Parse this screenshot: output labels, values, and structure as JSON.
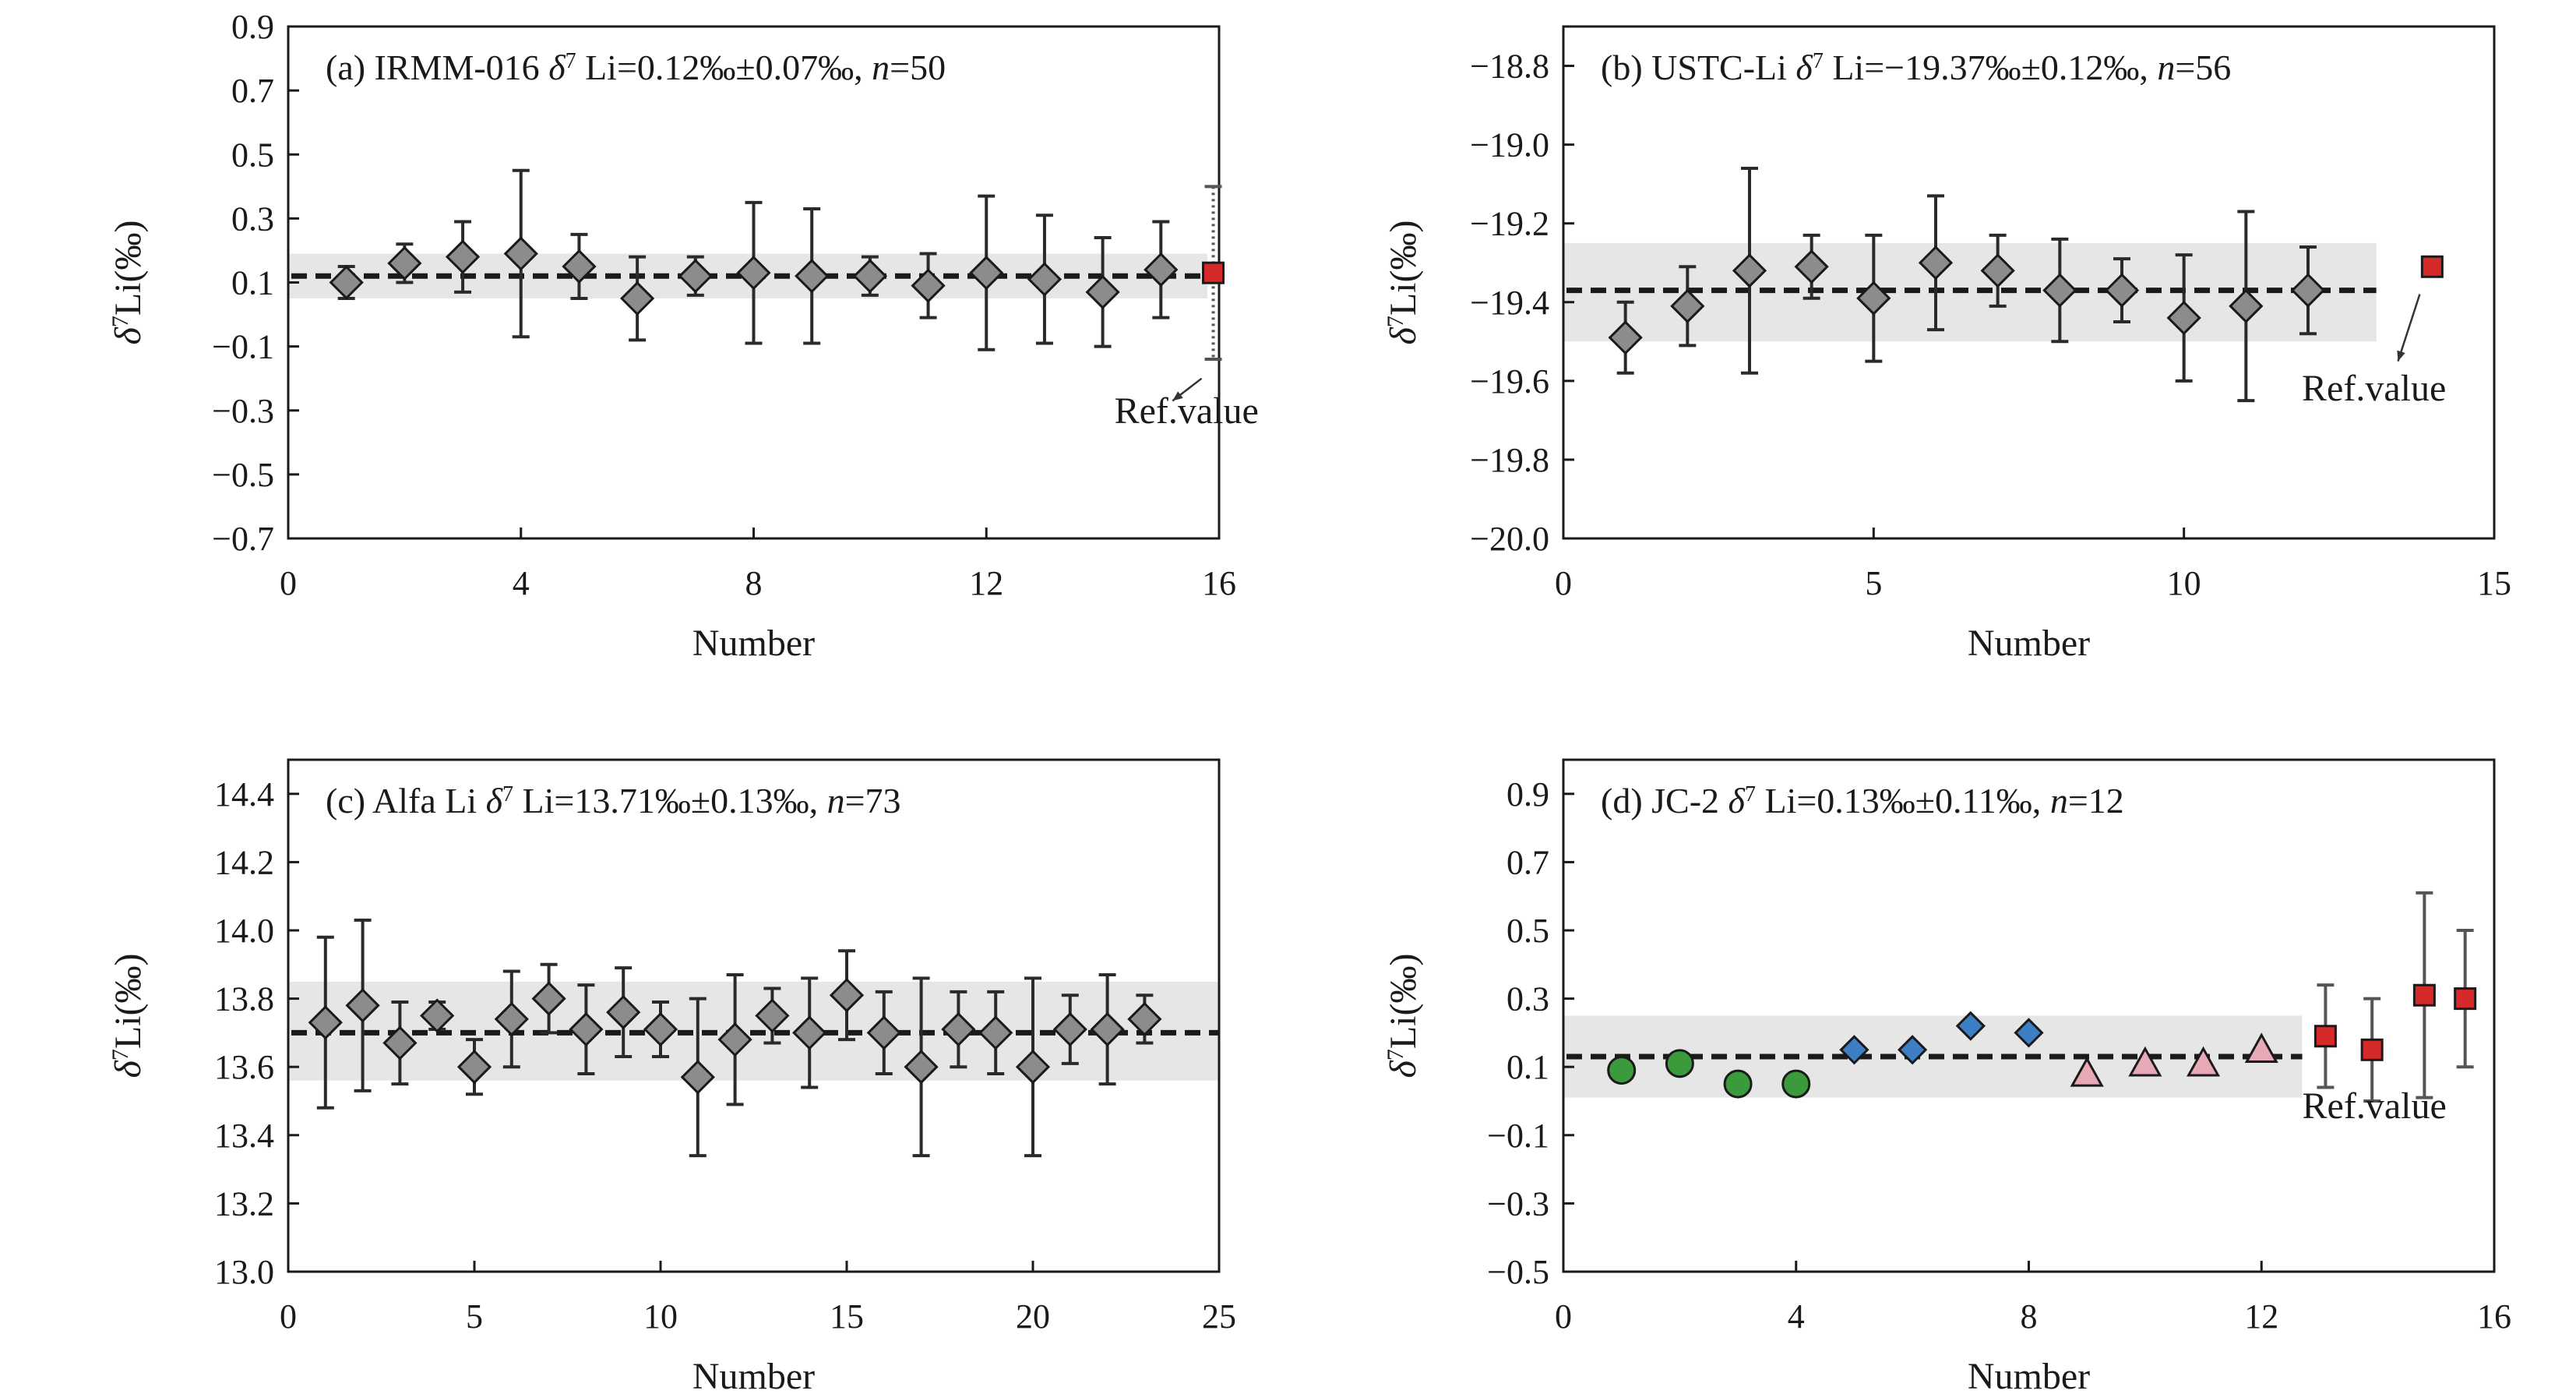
{
  "figure": {
    "ref_label": "Ref.value",
    "colors": {
      "band": "#e6e6e6",
      "gray_marker": "#8c8c8c",
      "ref_marker": "#d62a2a",
      "green": "#3a9a3c",
      "blue": "#3d7fc4",
      "pink": "#e8a9b6",
      "line": "#1a1a1a"
    }
  },
  "chart_data": [
    {
      "id": "a",
      "type": "scatter",
      "title_parts": [
        "(a) IRMM-016 ",
        "δ",
        "7",
        " Li=0.12‰±0.07‰, ",
        "n",
        "=50"
      ],
      "xlabel": "Number",
      "ylabel_parts": [
        "δ",
        "7",
        "Li(‰)"
      ],
      "xlim": [
        0,
        16
      ],
      "ylim": [
        -0.7,
        0.9
      ],
      "xticks": [
        0,
        4,
        8,
        12,
        16
      ],
      "yticks": [
        -0.7,
        -0.5,
        -0.3,
        -0.1,
        0.1,
        0.3,
        0.5,
        0.7,
        0.9
      ],
      "ytick_labels": [
        "−0.7",
        "−0.5",
        "−0.3",
        "−0.1",
        "0.1",
        "0.3",
        "0.5",
        "0.7",
        "0.9"
      ],
      "mean": 0.12,
      "band": [
        0.05,
        0.19
      ],
      "band_xmax": 15.8,
      "series": [
        {
          "marker": "diamond",
          "color": "gray",
          "points": [
            {
              "x": 1,
              "y": 0.1,
              "err": 0.05
            },
            {
              "x": 2,
              "y": 0.16,
              "err": 0.06
            },
            {
              "x": 3,
              "y": 0.18,
              "err": 0.11
            },
            {
              "x": 4,
              "y": 0.19,
              "err": 0.26
            },
            {
              "x": 5,
              "y": 0.15,
              "err": 0.1
            },
            {
              "x": 6,
              "y": 0.05,
              "err": 0.13
            },
            {
              "x": 7,
              "y": 0.12,
              "err": 0.06
            },
            {
              "x": 8,
              "y": 0.13,
              "err": 0.22
            },
            {
              "x": 9,
              "y": 0.12,
              "err": 0.21
            },
            {
              "x": 10,
              "y": 0.12,
              "err": 0.06
            },
            {
              "x": 11,
              "y": 0.09,
              "err": 0.1
            },
            {
              "x": 12,
              "y": 0.13,
              "err": 0.24
            },
            {
              "x": 13,
              "y": 0.11,
              "err": 0.2
            },
            {
              "x": 14,
              "y": 0.07,
              "err": 0.17
            },
            {
              "x": 15,
              "y": 0.14,
              "err": 0.15
            }
          ]
        },
        {
          "marker": "square",
          "color": "ref",
          "dotted": true,
          "points": [
            {
              "x": 15.9,
              "y": 0.13,
              "err": 0.27
            }
          ]
        }
      ],
      "ref_annotation": {
        "label_x": 14.2,
        "label_y": -0.34,
        "arrow_from": [
          15.7,
          -0.2
        ],
        "arrow_to": [
          15.2,
          -0.27
        ]
      }
    },
    {
      "id": "b",
      "type": "scatter",
      "title_parts": [
        "(b) USTC-Li ",
        "δ",
        "7",
        " Li=−19.37‰±0.12‰, ",
        "n",
        "=56"
      ],
      "xlabel": "Number",
      "ylabel_parts": [
        "δ",
        "7",
        "Li(‰)"
      ],
      "xlim": [
        0,
        15
      ],
      "ylim": [
        -20.0,
        -18.7
      ],
      "xticks": [
        0,
        5,
        10,
        15
      ],
      "yticks": [
        -20.0,
        -19.8,
        -19.6,
        -19.4,
        -19.2,
        -19.0,
        -18.8
      ],
      "ytick_labels": [
        "−20.0",
        "−19.8",
        "−19.6",
        "−19.4",
        "−19.2",
        "−19.0",
        "−18.8"
      ],
      "mean": -19.37,
      "band": [
        -19.5,
        -19.25
      ],
      "band_xmax": 13.1,
      "series": [
        {
          "marker": "diamond",
          "color": "gray",
          "points": [
            {
              "x": 1,
              "y": -19.49,
              "err": 0.09
            },
            {
              "x": 2,
              "y": -19.41,
              "err": 0.1
            },
            {
              "x": 3,
              "y": -19.32,
              "err": 0.26
            },
            {
              "x": 4,
              "y": -19.31,
              "err": 0.08
            },
            {
              "x": 5,
              "y": -19.39,
              "err": 0.16
            },
            {
              "x": 6,
              "y": -19.3,
              "err": 0.17
            },
            {
              "x": 7,
              "y": -19.32,
              "err": 0.09
            },
            {
              "x": 8,
              "y": -19.37,
              "err": 0.13
            },
            {
              "x": 9,
              "y": -19.37,
              "err": 0.08
            },
            {
              "x": 10,
              "y": -19.44,
              "err": 0.16
            },
            {
              "x": 11,
              "y": -19.41,
              "err": 0.24
            },
            {
              "x": 12,
              "y": -19.37,
              "err": 0.11
            }
          ]
        },
        {
          "marker": "square",
          "color": "ref",
          "points": [
            {
              "x": 14.0,
              "y": -19.31,
              "err": 0
            }
          ]
        }
      ],
      "ref_annotation": {
        "label_x": 11.9,
        "label_y": -19.65,
        "arrow_from": [
          13.8,
          -19.38
        ],
        "arrow_to": [
          13.45,
          -19.55
        ]
      }
    },
    {
      "id": "c",
      "type": "scatter",
      "title_parts": [
        "(c) Alfa Li ",
        "δ",
        "7",
        " Li=13.71‰±0.13‰, ",
        "n",
        "=73"
      ],
      "xlabel": "Number",
      "ylabel_parts": [
        "δ",
        "7",
        "Li(‰)"
      ],
      "xlim": [
        0,
        25
      ],
      "ylim": [
        13.0,
        14.5
      ],
      "xticks": [
        0,
        5,
        10,
        15,
        20,
        25
      ],
      "yticks": [
        13.0,
        13.2,
        13.4,
        13.6,
        13.8,
        14.0,
        14.2,
        14.4
      ],
      "ytick_labels": [
        "13.0",
        "13.2",
        "13.4",
        "13.6",
        "13.8",
        "14.0",
        "14.2",
        "14.4"
      ],
      "mean": 13.7,
      "band": [
        13.56,
        13.85
      ],
      "band_xmax": 25,
      "series": [
        {
          "marker": "diamond",
          "color": "gray",
          "points": [
            {
              "x": 1,
              "y": 13.73,
              "err": 0.25
            },
            {
              "x": 2,
              "y": 13.78,
              "err": 0.25
            },
            {
              "x": 3,
              "y": 13.67,
              "err": 0.12
            },
            {
              "x": 4,
              "y": 13.75,
              "err": 0.04
            },
            {
              "x": 5,
              "y": 13.6,
              "err": 0.08
            },
            {
              "x": 6,
              "y": 13.74,
              "err": 0.14
            },
            {
              "x": 7,
              "y": 13.8,
              "err": 0.1
            },
            {
              "x": 8,
              "y": 13.71,
              "err": 0.13
            },
            {
              "x": 9,
              "y": 13.76,
              "err": 0.13
            },
            {
              "x": 10,
              "y": 13.71,
              "err": 0.08
            },
            {
              "x": 11,
              "y": 13.57,
              "err": 0.23
            },
            {
              "x": 12,
              "y": 13.68,
              "err": 0.19
            },
            {
              "x": 13,
              "y": 13.75,
              "err": 0.08
            },
            {
              "x": 14,
              "y": 13.7,
              "err": 0.16
            },
            {
              "x": 15,
              "y": 13.81,
              "err": 0.13
            },
            {
              "x": 16,
              "y": 13.7,
              "err": 0.12
            },
            {
              "x": 17,
              "y": 13.6,
              "err": 0.26
            },
            {
              "x": 18,
              "y": 13.71,
              "err": 0.11
            },
            {
              "x": 19,
              "y": 13.7,
              "err": 0.12
            },
            {
              "x": 20,
              "y": 13.6,
              "err": 0.26
            },
            {
              "x": 21,
              "y": 13.71,
              "err": 0.1
            },
            {
              "x": 22,
              "y": 13.71,
              "err": 0.16
            },
            {
              "x": 23,
              "y": 13.74,
              "err": 0.07
            }
          ]
        }
      ]
    },
    {
      "id": "d",
      "type": "scatter",
      "title_parts": [
        "(d) JC-2 ",
        "δ",
        "7",
        " Li=0.13‰±0.11‰, ",
        "n",
        "=12"
      ],
      "xlabel": "Number",
      "ylabel_parts": [
        "δ",
        "7",
        "Li(‰)"
      ],
      "xlim": [
        0,
        16
      ],
      "ylim": [
        -0.5,
        1.0
      ],
      "xticks": [
        0,
        4,
        8,
        12,
        16
      ],
      "yticks": [
        -0.5,
        -0.3,
        -0.1,
        0.1,
        0.3,
        0.5,
        0.7,
        0.9
      ],
      "ytick_labels": [
        "−0.5",
        "−0.3",
        "−0.1",
        "0.1",
        "0.3",
        "0.5",
        "0.7",
        "0.9"
      ],
      "mean": 0.13,
      "band": [
        0.01,
        0.25
      ],
      "band_xmax": 12.7,
      "series": [
        {
          "marker": "circle",
          "color": "green",
          "points": [
            {
              "x": 1,
              "y": 0.09,
              "err": 0
            },
            {
              "x": 2,
              "y": 0.11,
              "err": 0
            },
            {
              "x": 3,
              "y": 0.05,
              "err": 0
            },
            {
              "x": 4,
              "y": 0.05,
              "err": 0
            }
          ]
        },
        {
          "marker": "diamond",
          "color": "blue",
          "points": [
            {
              "x": 5,
              "y": 0.15,
              "err": 0
            },
            {
              "x": 6,
              "y": 0.15,
              "err": 0
            },
            {
              "x": 7,
              "y": 0.22,
              "err": 0
            },
            {
              "x": 8,
              "y": 0.2,
              "err": 0
            }
          ]
        },
        {
          "marker": "triangle",
          "color": "pink",
          "points": [
            {
              "x": 9,
              "y": 0.08,
              "err": 0
            },
            {
              "x": 10,
              "y": 0.11,
              "err": 0
            },
            {
              "x": 11,
              "y": 0.11,
              "err": 0
            },
            {
              "x": 12,
              "y": 0.15,
              "err": 0
            }
          ]
        },
        {
          "marker": "square",
          "color": "ref",
          "points": [
            {
              "x": 13.1,
              "y": 0.19,
              "err": 0.15
            },
            {
              "x": 13.9,
              "y": 0.15,
              "err": 0.15
            },
            {
              "x": 14.8,
              "y": 0.31,
              "err": 0.3
            },
            {
              "x": 15.5,
              "y": 0.3,
              "err": 0.2
            }
          ]
        }
      ],
      "ref_annotation": {
        "label_x": 12.7,
        "label_y": -0.05
      }
    }
  ]
}
